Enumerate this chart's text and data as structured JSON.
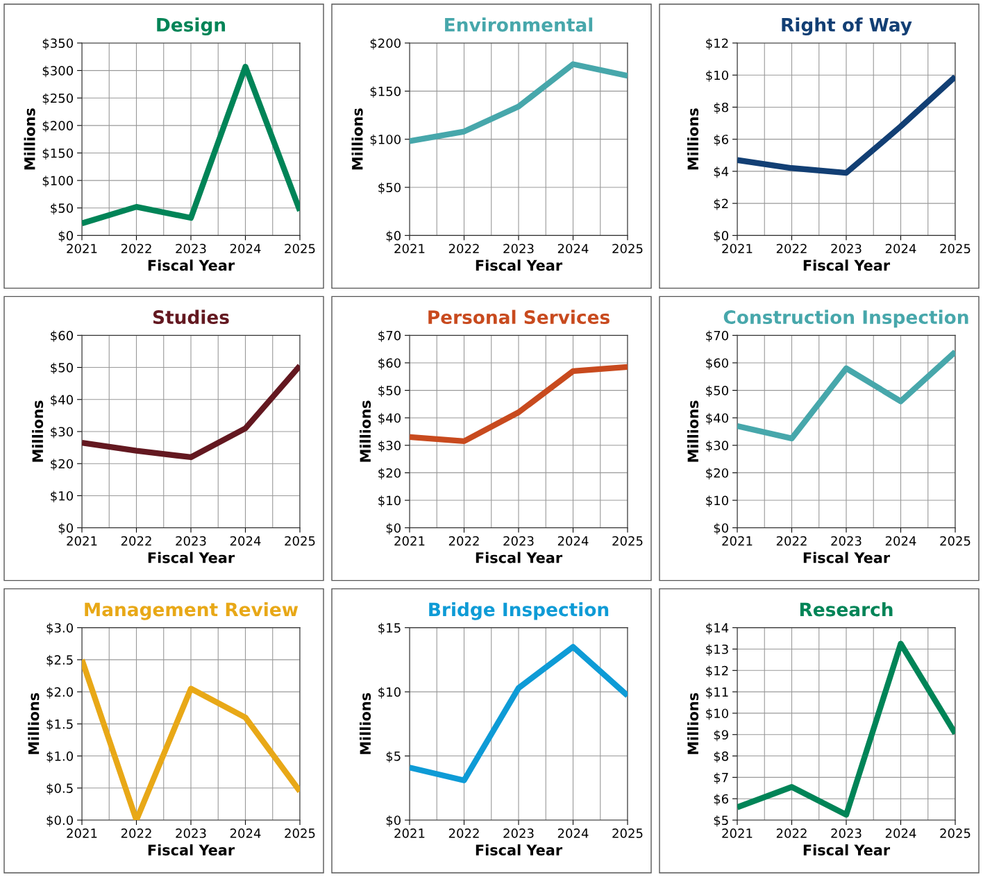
{
  "chart_data": [
    {
      "type": "line",
      "title": "Design",
      "xlabel": "Fiscal Year",
      "ylabel": "Millions",
      "x": [
        2021,
        2022,
        2023,
        2024,
        2025
      ],
      "xlim": [
        2021,
        2025
      ],
      "xticks": [
        2021,
        2022,
        2023,
        2024,
        2025
      ],
      "ylim": [
        0,
        350
      ],
      "yticks": [
        {
          "value": 0,
          "label": "$0"
        },
        {
          "value": 50,
          "label": "$50"
        },
        {
          "value": 100,
          "label": "$100"
        },
        {
          "value": 150,
          "label": "$150"
        },
        {
          "value": 200,
          "label": "$200"
        },
        {
          "value": 250,
          "label": "$250"
        },
        {
          "value": 300,
          "label": "$300"
        },
        {
          "value": 350,
          "label": "$350"
        }
      ],
      "grid": true,
      "series": [
        {
          "color": "#008457",
          "values": [
            22,
            52,
            32,
            307,
            45
          ]
        }
      ]
    },
    {
      "type": "line",
      "title": "Environmental",
      "xlabel": "Fiscal Year",
      "ylabel": "Millions",
      "x": [
        2021,
        2022,
        2023,
        2024,
        2025
      ],
      "xlim": [
        2021,
        2025
      ],
      "xticks": [
        2021,
        2022,
        2023,
        2024,
        2025
      ],
      "ylim": [
        0,
        200
      ],
      "yticks": [
        {
          "value": 0,
          "label": "$0"
        },
        {
          "value": 50,
          "label": "$50"
        },
        {
          "value": 100,
          "label": "$100"
        },
        {
          "value": 150,
          "label": "$150"
        },
        {
          "value": 200,
          "label": "$200"
        }
      ],
      "grid": true,
      "series": [
        {
          "color": "#47a7ab",
          "values": [
            98,
            108,
            134,
            178,
            166
          ]
        }
      ]
    },
    {
      "type": "line",
      "title": "Right of Way",
      "xlabel": "Fiscal Year",
      "ylabel": "Millions",
      "x": [
        2021,
        2022,
        2023,
        2024,
        2025
      ],
      "xlim": [
        2021,
        2025
      ],
      "xticks": [
        2021,
        2022,
        2023,
        2024,
        2025
      ],
      "ylim": [
        0,
        12
      ],
      "yticks": [
        {
          "value": 0,
          "label": "$0"
        },
        {
          "value": 2,
          "label": "$2"
        },
        {
          "value": 4,
          "label": "$4"
        },
        {
          "value": 6,
          "label": "$6"
        },
        {
          "value": 8,
          "label": "$8"
        },
        {
          "value": 10,
          "label": "$10"
        },
        {
          "value": 12,
          "label": "$12"
        }
      ],
      "grid": true,
      "series": [
        {
          "color": "#123f74",
          "values": [
            4.7,
            4.2,
            3.9,
            6.8,
            9.9
          ]
        }
      ]
    },
    {
      "type": "line",
      "title": "Studies",
      "xlabel": "Fiscal Year",
      "ylabel": "Millions",
      "x": [
        2021,
        2022,
        2023,
        2024,
        2025
      ],
      "xlim": [
        2021,
        2025
      ],
      "xticks": [
        2021,
        2022,
        2023,
        2024,
        2025
      ],
      "ylim": [
        0,
        60
      ],
      "yticks": [
        {
          "value": 0,
          "label": "$0"
        },
        {
          "value": 10,
          "label": "$10"
        },
        {
          "value": 20,
          "label": "$20"
        },
        {
          "value": 30,
          "label": "$30"
        },
        {
          "value": 40,
          "label": "$40"
        },
        {
          "value": 50,
          "label": "$50"
        },
        {
          "value": 60,
          "label": "$60"
        }
      ],
      "grid": true,
      "series": [
        {
          "color": "#631820",
          "values": [
            26.5,
            24,
            22,
            31,
            50.5
          ]
        }
      ]
    },
    {
      "type": "line",
      "title": "Personal Services",
      "xlabel": "Fiscal Year",
      "ylabel": "Millions",
      "x": [
        2021,
        2022,
        2023,
        2024,
        2025
      ],
      "xlim": [
        2021,
        2025
      ],
      "xticks": [
        2021,
        2022,
        2023,
        2024,
        2025
      ],
      "ylim": [
        0,
        70
      ],
      "yticks": [
        {
          "value": 0,
          "label": "$0"
        },
        {
          "value": 10,
          "label": "$10"
        },
        {
          "value": 20,
          "label": "$20"
        },
        {
          "value": 30,
          "label": "$30"
        },
        {
          "value": 40,
          "label": "$40"
        },
        {
          "value": 50,
          "label": "$50"
        },
        {
          "value": 60,
          "label": "$60"
        },
        {
          "value": 70,
          "label": "$70"
        }
      ],
      "grid": true,
      "series": [
        {
          "color": "#c84a1e",
          "values": [
            33,
            31.5,
            42,
            57,
            58.5
          ]
        }
      ]
    },
    {
      "type": "line",
      "title": "Construction Inspection",
      "xlabel": "Fiscal Year",
      "ylabel": "Millions",
      "x": [
        2021,
        2022,
        2023,
        2024,
        2025
      ],
      "xlim": [
        2021,
        2025
      ],
      "xticks": [
        2021,
        2022,
        2023,
        2024,
        2025
      ],
      "ylim": [
        0,
        70
      ],
      "yticks": [
        {
          "value": 0,
          "label": "$0"
        },
        {
          "value": 10,
          "label": "$10"
        },
        {
          "value": 20,
          "label": "$20"
        },
        {
          "value": 30,
          "label": "$30"
        },
        {
          "value": 40,
          "label": "$40"
        },
        {
          "value": 50,
          "label": "$50"
        },
        {
          "value": 60,
          "label": "$60"
        },
        {
          "value": 70,
          "label": "$70"
        }
      ],
      "grid": true,
      "series": [
        {
          "color": "#47a7ab",
          "values": [
            37,
            32.5,
            58,
            46,
            64
          ]
        }
      ]
    },
    {
      "type": "line",
      "title": "Management Review",
      "xlabel": "Fiscal Year",
      "ylabel": "Millions",
      "x": [
        2021,
        2022,
        2023,
        2024,
        2025
      ],
      "xlim": [
        2021,
        2025
      ],
      "xticks": [
        2021,
        2022,
        2023,
        2024,
        2025
      ],
      "ylim": [
        0,
        3
      ],
      "yticks": [
        {
          "value": 0,
          "label": "$0.0"
        },
        {
          "value": 0.5,
          "label": "$0.5"
        },
        {
          "value": 1,
          "label": "$1.0"
        },
        {
          "value": 1.5,
          "label": "$1.5"
        },
        {
          "value": 2,
          "label": "$2.0"
        },
        {
          "value": 2.5,
          "label": "$2.5"
        },
        {
          "value": 3,
          "label": "$3.0"
        }
      ],
      "grid": true,
      "series": [
        {
          "color": "#e8a817",
          "values": [
            2.5,
            0.0,
            2.05,
            1.6,
            0.45
          ]
        }
      ]
    },
    {
      "type": "line",
      "title": "Bridge Inspection",
      "xlabel": "Fiscal Year",
      "ylabel": "Millions",
      "x": [
        2021,
        2022,
        2023,
        2024,
        2025
      ],
      "xlim": [
        2021,
        2025
      ],
      "xticks": [
        2021,
        2022,
        2023,
        2024,
        2025
      ],
      "ylim": [
        0,
        15
      ],
      "yticks": [
        {
          "value": 0,
          "label": "$0"
        },
        {
          "value": 5,
          "label": "$5"
        },
        {
          "value": 10,
          "label": "$10"
        },
        {
          "value": 15,
          "label": "$15"
        }
      ],
      "grid": true,
      "series": [
        {
          "color": "#0e9bd6",
          "values": [
            4.1,
            3.1,
            10.3,
            13.5,
            9.7
          ]
        }
      ]
    },
    {
      "type": "line",
      "title": "Research",
      "xlabel": "Fiscal Year",
      "ylabel": "Millions",
      "x": [
        2021,
        2022,
        2023,
        2024,
        2025
      ],
      "xlim": [
        2021,
        2025
      ],
      "xticks": [
        2021,
        2022,
        2023,
        2024,
        2025
      ],
      "ylim": [
        5,
        14
      ],
      "yticks": [
        {
          "value": 5,
          "label": "$5"
        },
        {
          "value": 6,
          "label": "$6"
        },
        {
          "value": 7,
          "label": "$7"
        },
        {
          "value": 8,
          "label": "$8"
        },
        {
          "value": 9,
          "label": "$9"
        },
        {
          "value": 10,
          "label": "$10"
        },
        {
          "value": 11,
          "label": "$11"
        },
        {
          "value": 12,
          "label": "$12"
        },
        {
          "value": 13,
          "label": "$13"
        },
        {
          "value": 14,
          "label": "$14"
        }
      ],
      "grid": true,
      "series": [
        {
          "color": "#008457",
          "values": [
            5.6,
            6.55,
            5.25,
            13.25,
            9.05
          ]
        }
      ]
    }
  ]
}
